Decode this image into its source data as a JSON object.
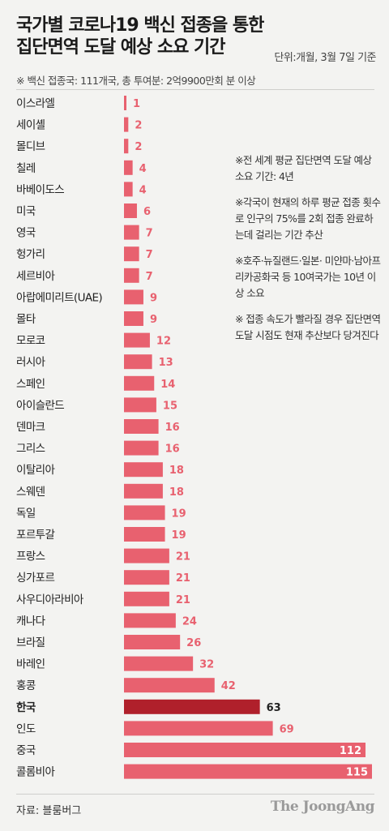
{
  "title_line1": "국가별 코로나19 백신 접종을 통한",
  "title_line2": "집단면역 도달 예상 소요 기간",
  "unit": "단위:개월, 3월 7일 기준",
  "note": "※ 백신 접종국: 111개국, 총 투여분: 2억9900만회 분 이상",
  "side_notes": [
    "※전 세계 평균 집단면역 도달 예상 소요 기간: 4년",
    "※각국이 현재의 하루 평균 접종 횟수로 인구의 75%를 2회 접종 완료하는데 걸리는 기간 추산",
    "※호주·뉴질랜드·일본· 미얀마·남아프리카공화국 등 10여국가는 10년 이상 소요",
    "※ 접종 속도가 빨라질 경우 집단면역 도달 시점도 현재 추산보다 당겨진다"
  ],
  "source": "자료: 블룸버그",
  "brand": "The JoongAng",
  "colors": {
    "bar": "#e8616f",
    "highlight": "#b0202b",
    "label": "#e8616f",
    "label_inside": "#ffffff"
  },
  "chart_data": {
    "type": "bar",
    "orientation": "horizontal",
    "highlight": "한국",
    "categories": [
      "이스라엘",
      "세이셸",
      "몰디브",
      "칠레",
      "바베이도스",
      "미국",
      "영국",
      "헝가리",
      "세르비아",
      "아랍에미리트(UAE)",
      "몰타",
      "모로코",
      "러시아",
      "스페인",
      "아이슬란드",
      "덴마크",
      "그리스",
      "이탈리아",
      "스웨덴",
      "독일",
      "포르투갈",
      "프랑스",
      "싱가포르",
      "사우디아라비아",
      "캐나다",
      "브라질",
      "바레인",
      "홍콩",
      "한국",
      "인도",
      "중국",
      "콜롬비아"
    ],
    "values": [
      1,
      2,
      2,
      4,
      4,
      6,
      7,
      7,
      7,
      9,
      9,
      12,
      13,
      14,
      15,
      16,
      16,
      18,
      18,
      19,
      19,
      21,
      21,
      21,
      24,
      26,
      32,
      42,
      63,
      69,
      112,
      115
    ],
    "xlabel": "",
    "ylabel": ""
  }
}
